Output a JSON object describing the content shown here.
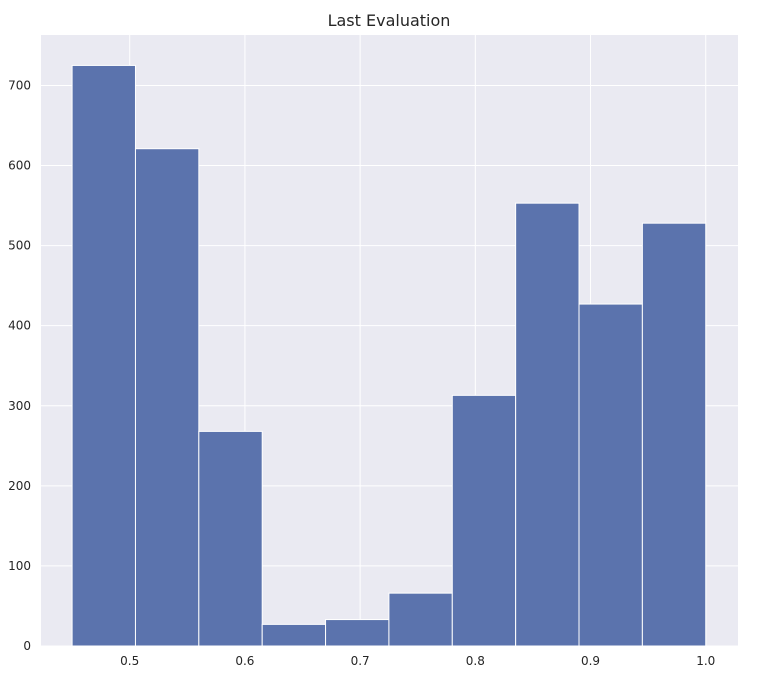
{
  "chart_data": {
    "type": "bar",
    "title": "Last Evaluation",
    "xlabel": "",
    "ylabel": "",
    "bin_edges": [
      0.45,
      0.505,
      0.56,
      0.615,
      0.67,
      0.725,
      0.78,
      0.835,
      0.89,
      0.945,
      1.0
    ],
    "values": [
      725,
      621,
      268,
      27,
      33,
      66,
      313,
      553,
      427,
      528
    ],
    "xlim": [
      0.423,
      1.028
    ],
    "ylim": [
      0,
      763
    ],
    "x_ticks": [
      0.5,
      0.6,
      0.7,
      0.8,
      0.9,
      1.0
    ],
    "x_tick_labels": [
      "0.5",
      "0.6",
      "0.7",
      "0.8",
      "0.9",
      "1.0"
    ],
    "y_ticks": [
      0,
      100,
      200,
      300,
      400,
      500,
      600,
      700
    ],
    "y_tick_labels": [
      "0",
      "100",
      "200",
      "300",
      "400",
      "500",
      "600",
      "700"
    ],
    "grid": true,
    "colors": {
      "bar": "#5b73ad",
      "background": "#eaeaf2",
      "grid": "#ffffff"
    }
  }
}
